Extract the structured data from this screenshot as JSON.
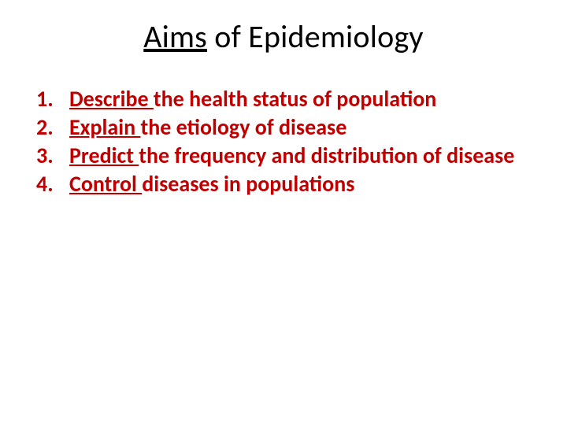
{
  "colors": {
    "background": "#ffffff",
    "title_color": "#000000",
    "list_color": "#c00000"
  },
  "typography": {
    "family": "Calibri",
    "title_fontsize_pt": 40,
    "list_fontsize_pt": 28,
    "list_weight": "bold",
    "line_height": 1.22
  },
  "title": {
    "underlined": "Aims",
    "rest": " of Epidemiology"
  },
  "items": [
    {
      "lead": "Describe ",
      "rest": "the health status of population"
    },
    {
      "lead": "Explain ",
      "rest": "the etiology of disease"
    },
    {
      "lead": "Predict ",
      "rest": "the frequency and distribution of disease"
    },
    {
      "lead": "Control ",
      "rest": "diseases in populations"
    }
  ]
}
